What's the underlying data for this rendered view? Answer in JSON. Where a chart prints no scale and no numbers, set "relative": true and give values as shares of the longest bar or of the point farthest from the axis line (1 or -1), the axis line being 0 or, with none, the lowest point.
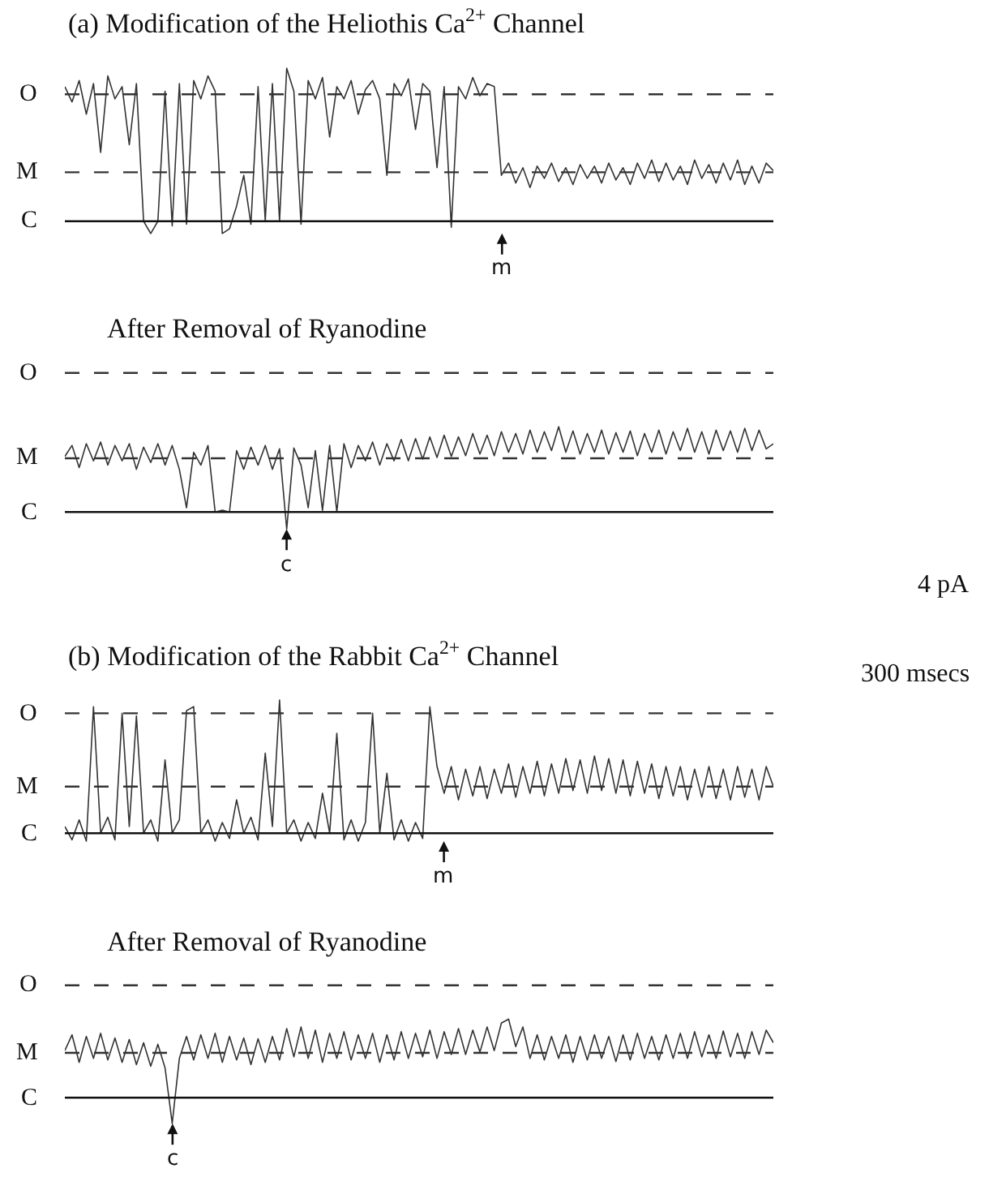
{
  "chart_data": [
    {
      "type": "line",
      "title": "(a) Modification of the Heliothis Ca$^{2+}$ Channel",
      "relative": true,
      "line_style": "solid",
      "marker": "none",
      "categories": [
        null,
        null,
        null,
        null,
        null,
        null,
        null,
        null,
        null,
        null,
        null,
        null,
        null,
        null,
        null,
        null,
        null,
        null,
        null,
        null,
        null,
        null,
        null,
        null,
        null,
        null,
        null,
        null,
        null,
        null,
        null,
        null,
        null,
        null,
        null,
        null,
        null,
        null,
        null,
        null,
        null,
        null,
        null,
        null,
        null,
        null,
        null,
        null,
        null,
        null,
        null,
        null,
        null,
        null,
        null,
        null,
        null,
        null,
        null,
        null,
        null,
        null,
        null,
        null,
        null,
        null,
        null,
        null,
        null,
        null,
        null,
        null,
        null,
        null,
        null,
        null,
        null,
        null,
        null,
        null,
        null,
        null,
        null,
        null,
        null,
        null,
        null,
        null,
        null,
        null,
        null,
        null,
        null,
        null,
        null,
        null,
        null,
        null,
        null,
        null
      ],
      "series": [
        {
          "color": "#333333",
          "values": [
            0.88,
            0.78,
            0.92,
            0.7,
            0.9,
            0.45,
            0.95,
            0.8,
            0.88,
            0.5,
            0.9,
            0.0,
            -0.08,
            0.0,
            0.85,
            -0.03,
            0.9,
            -0.02,
            0.92,
            0.8,
            0.95,
            0.85,
            -0.08,
            -0.05,
            0.1,
            0.3,
            -0.02,
            0.88,
            0.0,
            0.9,
            0.0,
            1.0,
            0.85,
            -0.02,
            0.92,
            0.8,
            0.94,
            0.55,
            0.88,
            0.8,
            0.92,
            0.7,
            0.86,
            0.92,
            0.8,
            0.3,
            0.9,
            0.82,
            0.93,
            0.6,
            0.9,
            0.85,
            0.35,
            0.88,
            -0.04,
            0.88,
            0.8,
            0.94,
            0.82,
            0.9,
            0.88,
            0.3,
            0.38,
            0.25,
            0.35,
            0.22,
            0.36,
            0.28,
            0.38,
            0.26,
            0.35,
            0.24,
            0.37,
            0.28,
            0.36,
            0.25,
            0.38,
            0.27,
            0.35,
            0.24,
            0.38,
            0.28,
            0.4,
            0.26,
            0.38,
            0.27,
            0.36,
            0.24,
            0.4,
            0.28,
            0.37,
            0.25,
            0.38,
            0.27,
            0.4,
            0.24,
            0.36,
            0.25,
            0.38,
            0.33
          ]
        }
      ],
      "ref_lines": [
        {
          "axis": "y",
          "value": 0.83,
          "label": "O",
          "color": "#333333",
          "line_style": "dashed"
        },
        {
          "axis": "y",
          "value": 0.32,
          "label": "M",
          "color": "#333333",
          "line_style": "dashed"
        },
        {
          "axis": "y",
          "value": 0,
          "label": "C",
          "color": "#111111",
          "line_style": "solid"
        }
      ],
      "annotations": [
        "m"
      ]
    },
    {
      "type": "line",
      "title": "After Removal of Ryanodine",
      "relative": true,
      "line_style": "solid",
      "marker": "none",
      "categories": [
        null,
        null,
        null,
        null,
        null,
        null,
        null,
        null,
        null,
        null,
        null,
        null,
        null,
        null,
        null,
        null,
        null,
        null,
        null,
        null,
        null,
        null,
        null,
        null,
        null,
        null,
        null,
        null,
        null,
        null,
        null,
        null,
        null,
        null,
        null,
        null,
        null,
        null,
        null,
        null,
        null,
        null,
        null,
        null,
        null,
        null,
        null,
        null,
        null,
        null,
        null,
        null,
        null,
        null,
        null,
        null,
        null,
        null,
        null,
        null,
        null,
        null,
        null,
        null,
        null,
        null,
        null,
        null,
        null,
        null,
        null,
        null,
        null,
        null,
        null,
        null,
        null,
        null,
        null,
        null,
        null,
        null,
        null,
        null,
        null,
        null,
        null,
        null,
        null,
        null,
        null,
        null,
        null,
        null,
        null,
        null,
        null,
        null,
        null,
        null
      ],
      "series": [
        {
          "color": "#333333",
          "values": [
            0.65,
            0.78,
            0.52,
            0.8,
            0.6,
            0.82,
            0.55,
            0.78,
            0.6,
            0.8,
            0.5,
            0.76,
            0.58,
            0.8,
            0.55,
            0.78,
            0.5,
            0.05,
            0.7,
            0.55,
            0.78,
            0.0,
            0.02,
            0.0,
            0.72,
            0.5,
            0.76,
            0.55,
            0.78,
            0.5,
            0.74,
            -0.2,
            0.75,
            0.55,
            0.05,
            0.72,
            0.02,
            0.78,
            0.0,
            0.8,
            0.52,
            0.78,
            0.6,
            0.82,
            0.55,
            0.8,
            0.6,
            0.85,
            0.6,
            0.86,
            0.62,
            0.88,
            0.64,
            0.9,
            0.65,
            0.88,
            0.66,
            0.92,
            0.68,
            0.9,
            0.66,
            0.94,
            0.7,
            0.92,
            0.68,
            0.96,
            0.7,
            0.94,
            0.72,
            1.0,
            0.7,
            0.95,
            0.68,
            0.92,
            0.7,
            0.96,
            0.68,
            0.93,
            0.7,
            0.95,
            0.66,
            0.92,
            0.7,
            0.96,
            0.68,
            0.94,
            0.72,
            0.98,
            0.7,
            0.94,
            0.68,
            0.96,
            0.72,
            0.95,
            0.7,
            0.98,
            0.72,
            0.96,
            0.74,
            0.8
          ]
        }
      ],
      "ref_lines": [
        {
          "axis": "y",
          "value": 1.63,
          "label": "O",
          "color": "#333333",
          "line_style": "dashed"
        },
        {
          "axis": "y",
          "value": 0.63,
          "label": "M",
          "color": "#333333",
          "line_style": "dashed"
        },
        {
          "axis": "y",
          "value": 0,
          "label": "C",
          "color": "#111111",
          "line_style": "solid"
        }
      ],
      "annotations": [
        "c"
      ]
    },
    {
      "type": "line",
      "title": "(b) Modification of the Rabbit Ca$^{2+}$ Channel",
      "relative": true,
      "line_style": "solid",
      "marker": "none",
      "categories": [
        null,
        null,
        null,
        null,
        null,
        null,
        null,
        null,
        null,
        null,
        null,
        null,
        null,
        null,
        null,
        null,
        null,
        null,
        null,
        null,
        null,
        null,
        null,
        null,
        null,
        null,
        null,
        null,
        null,
        null,
        null,
        null,
        null,
        null,
        null,
        null,
        null,
        null,
        null,
        null,
        null,
        null,
        null,
        null,
        null,
        null,
        null,
        null,
        null,
        null,
        null,
        null,
        null,
        null,
        null,
        null,
        null,
        null,
        null,
        null,
        null,
        null,
        null,
        null,
        null,
        null,
        null,
        null,
        null,
        null,
        null,
        null,
        null,
        null,
        null,
        null,
        null,
        null,
        null,
        null,
        null,
        null,
        null,
        null,
        null,
        null,
        null,
        null,
        null,
        null,
        null,
        null,
        null,
        null,
        null,
        null,
        null,
        null,
        null,
        null
      ],
      "series": [
        {
          "color": "#333333",
          "values": [
            0.05,
            -0.05,
            0.1,
            -0.06,
            0.95,
            0.0,
            0.12,
            -0.05,
            0.9,
            0.05,
            0.88,
            0.0,
            0.1,
            -0.06,
            0.55,
            0.0,
            0.1,
            0.92,
            0.95,
            0.0,
            0.1,
            -0.06,
            0.08,
            -0.04,
            0.25,
            0.0,
            0.12,
            -0.05,
            0.6,
            0.05,
            1.0,
            0.0,
            0.1,
            -0.06,
            0.08,
            -0.04,
            0.3,
            0.0,
            0.75,
            -0.05,
            0.1,
            -0.06,
            0.08,
            0.9,
            0.0,
            0.45,
            -0.05,
            0.1,
            -0.06,
            0.08,
            -0.04,
            0.95,
            0.5,
            0.3,
            0.5,
            0.25,
            0.48,
            0.28,
            0.5,
            0.26,
            0.48,
            0.3,
            0.52,
            0.27,
            0.5,
            0.3,
            0.54,
            0.28,
            0.52,
            0.3,
            0.56,
            0.32,
            0.55,
            0.3,
            0.58,
            0.32,
            0.56,
            0.3,
            0.55,
            0.28,
            0.54,
            0.3,
            0.52,
            0.26,
            0.5,
            0.28,
            0.5,
            0.25,
            0.48,
            0.27,
            0.5,
            0.26,
            0.48,
            0.25,
            0.5,
            0.27,
            0.48,
            0.25,
            0.5,
            0.35
          ]
        }
      ],
      "ref_lines": [
        {
          "axis": "y",
          "value": 0.9,
          "label": "O",
          "color": "#333333",
          "line_style": "dashed"
        },
        {
          "axis": "y",
          "value": 0.35,
          "label": "M",
          "color": "#333333",
          "line_style": "dashed"
        },
        {
          "axis": "y",
          "value": 0,
          "label": "C",
          "color": "#111111",
          "line_style": "solid"
        }
      ],
      "annotations": [
        "m",
        "4 pA",
        "300 msecs"
      ]
    },
    {
      "type": "line",
      "title": "After Removal of Ryanodine",
      "relative": true,
      "line_style": "solid",
      "marker": "none",
      "categories": [
        null,
        null,
        null,
        null,
        null,
        null,
        null,
        null,
        null,
        null,
        null,
        null,
        null,
        null,
        null,
        null,
        null,
        null,
        null,
        null,
        null,
        null,
        null,
        null,
        null,
        null,
        null,
        null,
        null,
        null,
        null,
        null,
        null,
        null,
        null,
        null,
        null,
        null,
        null,
        null,
        null,
        null,
        null,
        null,
        null,
        null,
        null,
        null,
        null,
        null,
        null,
        null,
        null,
        null,
        null,
        null,
        null,
        null,
        null,
        null,
        null,
        null,
        null,
        null,
        null,
        null,
        null,
        null,
        null,
        null,
        null,
        null,
        null,
        null,
        null,
        null,
        null,
        null,
        null,
        null,
        null,
        null,
        null,
        null,
        null,
        null,
        null,
        null,
        null,
        null,
        null,
        null,
        null,
        null,
        null,
        null,
        null,
        null,
        null,
        null
      ],
      "series": [
        {
          "color": "#333333",
          "values": [
            0.6,
            0.8,
            0.45,
            0.78,
            0.5,
            0.82,
            0.48,
            0.76,
            0.45,
            0.74,
            0.42,
            0.7,
            0.4,
            0.68,
            0.38,
            -0.33,
            0.5,
            0.78,
            0.48,
            0.8,
            0.5,
            0.82,
            0.45,
            0.78,
            0.48,
            0.76,
            0.42,
            0.75,
            0.45,
            0.78,
            0.48,
            0.88,
            0.52,
            0.9,
            0.5,
            0.86,
            0.45,
            0.82,
            0.5,
            0.84,
            0.48,
            0.8,
            0.5,
            0.82,
            0.45,
            0.8,
            0.48,
            0.84,
            0.5,
            0.82,
            0.52,
            0.86,
            0.5,
            0.84,
            0.55,
            0.88,
            0.55,
            0.86,
            0.58,
            0.9,
            0.6,
            0.95,
            1.0,
            0.65,
            0.9,
            0.5,
            0.8,
            0.48,
            0.78,
            0.5,
            0.8,
            0.45,
            0.78,
            0.48,
            0.8,
            0.5,
            0.78,
            0.46,
            0.8,
            0.48,
            0.82,
            0.5,
            0.78,
            0.48,
            0.8,
            0.5,
            0.82,
            0.5,
            0.84,
            0.52,
            0.8,
            0.5,
            0.85,
            0.52,
            0.82,
            0.5,
            0.84,
            0.55,
            0.86,
            0.7
          ]
        }
      ],
      "ref_lines": [
        {
          "axis": "y",
          "value": 1.43,
          "label": "O",
          "color": "#333333",
          "line_style": "dashed"
        },
        {
          "axis": "y",
          "value": 0.57,
          "label": "M",
          "color": "#333333",
          "line_style": "dashed"
        },
        {
          "axis": "y",
          "value": 0,
          "label": "C",
          "color": "#111111",
          "line_style": "solid"
        }
      ],
      "annotations": [
        "c"
      ]
    }
  ]
}
